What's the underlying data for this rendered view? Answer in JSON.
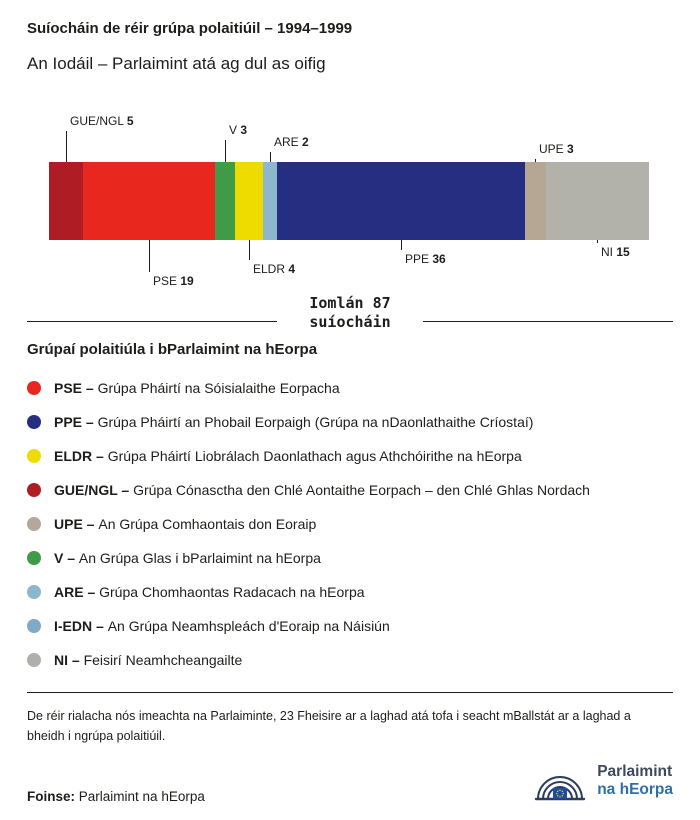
{
  "header": {
    "title": "Suíocháin de réir grúpa polaitiúil – 1994–1999",
    "subtitle": "An Iodáil – Parlaimint atá ag dul as oifig"
  },
  "chart_data": {
    "type": "bar",
    "orientation": "horizontal-stacked",
    "title": "Suíocháin de réir grúpa polaitiúil – 1994–1999",
    "subtitle": "An Iodáil – Parlaimint atá ag dul as oifig",
    "total": 87,
    "total_text_line1": "Iomlán 87",
    "total_text_line2": "suíocháin",
    "segments": [
      {
        "label": "GUE/NGL",
        "value": 5,
        "color": "#b01c24",
        "callout": {
          "side": "top",
          "len": 31
        }
      },
      {
        "label": "PSE",
        "value": 19,
        "color": "#e8271e",
        "callout": {
          "side": "bottom",
          "len": 32
        }
      },
      {
        "label": "V",
        "value": 3,
        "color": "#3f9b48",
        "callout": {
          "side": "top",
          "len": 22
        }
      },
      {
        "label": "ELDR",
        "value": 4,
        "color": "#eedc00",
        "callout": {
          "side": "bottom",
          "len": 20
        }
      },
      {
        "label": "ARE",
        "value": 2,
        "color": "#8cb7cd",
        "callout": {
          "side": "top",
          "len": 10
        }
      },
      {
        "label": "PPE",
        "value": 36,
        "color": "#252e80",
        "callout": {
          "side": "bottom",
          "len": 10
        }
      },
      {
        "label": "UPE",
        "value": 3,
        "color": "#b5a793",
        "callout": {
          "side": "top",
          "len": 3
        }
      },
      {
        "label": "NI",
        "value": 15,
        "color": "#b2b1aa",
        "callout": {
          "side": "bottom",
          "len": 3
        }
      }
    ]
  },
  "legend": {
    "title": "Grúpaí polaitiúla i bParlaimint na hEorpa",
    "items": [
      {
        "abbr": "PSE",
        "desc": "Grúpa Pháirtí na Sóisialaithe Eorpacha",
        "color": "#e8271e"
      },
      {
        "abbr": "PPE",
        "desc": "Grúpa Pháirtí an Phobail Eorpaigh (Grúpa na nDaonlathaithe Críostaí)",
        "color": "#252e80"
      },
      {
        "abbr": "ELDR",
        "desc": "Grúpa Pháirtí Liobrálach Daonlathach agus Athchóirithe na hEorpa",
        "color": "#eedc00"
      },
      {
        "abbr": "GUE/NGL",
        "desc": "Grúpa Cónasctha den Chlé Aontaithe Eorpach – den Chlé Ghlas Nordach",
        "color": "#b01c24"
      },
      {
        "abbr": "UPE",
        "desc": "An Grúpa Comhaontais don Eoraip",
        "color": "#b3a89a"
      },
      {
        "abbr": "V",
        "desc": "An Grúpa Glas i bParlaimint na hEorpa",
        "color": "#3f9b48"
      },
      {
        "abbr": "ARE",
        "desc": "Grúpa Chomhaontas Radacach na hEorpa",
        "color": "#8cb7cd"
      },
      {
        "abbr": "I-EDN",
        "desc": "An Grúpa Neamhspleách d'Eoraip na Náisiún",
        "color": "#7fa9c4"
      },
      {
        "abbr": "NI",
        "desc": "Feisirí Neamhcheangailte",
        "color": "#b0b0ab"
      }
    ]
  },
  "footer": {
    "note": "De réir rialacha nós imeachta na Parlaiminte, 23 Fheisire ar a laghad atá tofa i seacht mBallstát ar a laghad a bheidh i ngrúpa polaitiúil.",
    "source_label": "Foinse:",
    "source_value": "Parlaimint na hEorpa",
    "logo_line1": "Parlaimint",
    "logo_line2": "na hEorpa"
  }
}
